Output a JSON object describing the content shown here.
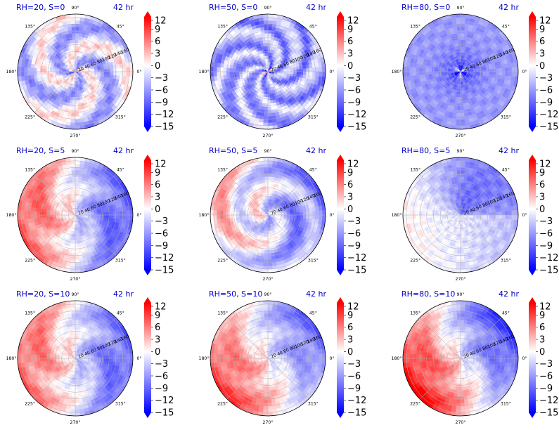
{
  "chart_data": [
    {
      "type": "heatmap",
      "projection": "polar",
      "title_left": "RH=20, S=0",
      "title_right": "42 hr",
      "pattern": "mixed",
      "asym": 0.2,
      "field_shown": "contour fill -15 to 12"
    },
    {
      "type": "heatmap",
      "projection": "polar",
      "title_left": "RH=50, S=0",
      "title_right": "42 hr",
      "pattern": "blue",
      "asym": 0.2,
      "field_shown": "contour fill -15 to 12"
    },
    {
      "type": "heatmap",
      "projection": "polar",
      "title_left": "RH=80, S=0",
      "title_right": "42 hr",
      "pattern": "deepblue",
      "asym": 0.1,
      "field_shown": "contour fill -15 to 12"
    },
    {
      "type": "heatmap",
      "projection": "polar",
      "title_left": "RH=20, S=5",
      "title_right": "42 hr",
      "pattern": "leftred",
      "asym": 0.8,
      "field_shown": "contour fill -15 to 12"
    },
    {
      "type": "heatmap",
      "projection": "polar",
      "title_left": "RH=50, S=5",
      "title_right": "42 hr",
      "pattern": "spiral",
      "asym": 0.55,
      "field_shown": "contour fill -15 to 12"
    },
    {
      "type": "heatmap",
      "projection": "polar",
      "title_left": "RH=80, S=5",
      "title_right": "42 hr",
      "pattern": "topblue",
      "asym": 0.6,
      "field_shown": "contour fill -15 to 12"
    },
    {
      "type": "heatmap",
      "projection": "polar",
      "title_left": "RH=20, S=10",
      "title_right": "42 hr",
      "pattern": "leftred",
      "asym": 0.75,
      "field_shown": "contour fill -15 to 12"
    },
    {
      "type": "heatmap",
      "projection": "polar",
      "title_left": "RH=50, S=10",
      "title_right": "42 hr",
      "pattern": "diag",
      "asym": 0.7,
      "field_shown": "contour fill -15 to 12"
    },
    {
      "type": "heatmap",
      "projection": "polar",
      "title_left": "RH=80, S=10",
      "title_right": "42 hr",
      "pattern": "diag",
      "asym": 0.9,
      "field_shown": "contour fill -15 to 12"
    }
  ],
  "angle_labels": [
    "90°",
    "45°",
    "0°",
    "315°",
    "270°",
    "225°",
    "180°",
    "135°"
  ],
  "radial_ticks": [
    "20",
    "40",
    "60",
    "80",
    "100",
    "120",
    "140",
    "160"
  ],
  "colorbar": {
    "ticks": [
      "12",
      "9",
      "6",
      "3",
      "0",
      "−3",
      "−6",
      "−9",
      "−12",
      "−15"
    ],
    "tick_values": [
      12,
      9,
      6,
      3,
      0,
      -3,
      -6,
      -9,
      -12,
      -15
    ],
    "range": [
      -15,
      12
    ],
    "extend": "both",
    "colormap": "bwr",
    "colors": {
      "low": "#0000ff",
      "mid": "#ffffff",
      "high": "#ff0000"
    }
  }
}
